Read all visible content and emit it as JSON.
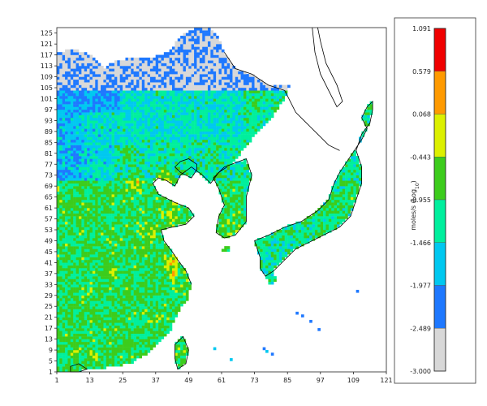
{
  "chart_data": {
    "type": "heatmap",
    "x_ticks": [
      "1",
      "13",
      "25",
      "37",
      "49",
      "61",
      "73",
      "85",
      "97",
      "109",
      "121"
    ],
    "y_ticks": [
      "1",
      "5",
      "9",
      "13",
      "17",
      "21",
      "25",
      "29",
      "33",
      "37",
      "41",
      "45",
      "49",
      "53",
      "57",
      "61",
      "65",
      "69",
      "73",
      "77",
      "81",
      "85",
      "89",
      "93",
      "97",
      "101",
      "105",
      "109",
      "113",
      "117",
      "121",
      "125"
    ],
    "xlim": [
      1,
      121
    ],
    "ylim": [
      1,
      127
    ],
    "colorbar": {
      "unit_label": "moles/s (Log",
      "unit_subscript": "10",
      "unit_suffix": ")",
      "levels": [
        "1.091",
        "0.579",
        "0.068",
        "-0.443",
        "-0.955",
        "-1.466",
        "-1.977",
        "-2.489",
        "-3.000"
      ],
      "colors": [
        "#f00000",
        "#ff9a00",
        "#dcf000",
        "#3ccc1c",
        "#00ef9d",
        "#00c8f0",
        "#1e78ff",
        "#d8d8d8"
      ]
    }
  }
}
